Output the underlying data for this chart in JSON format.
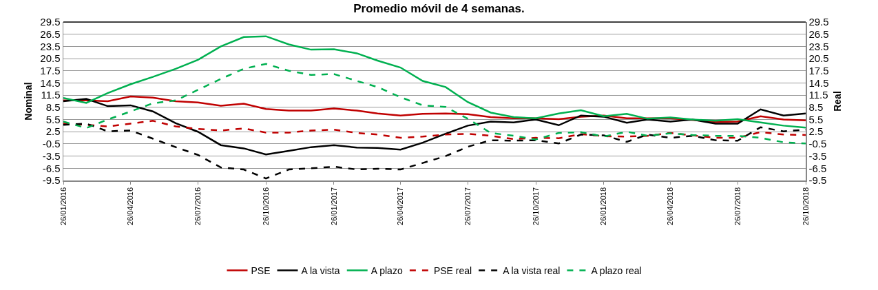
{
  "chart_data": {
    "type": "line",
    "title": "Promedio móvil de 4 semanas.",
    "ylabel": "Nominal",
    "y2label": "Real",
    "x": [
      "2016-01-26",
      "2016-02-26",
      "2016-03-26",
      "2016-04-26",
      "2016-05-26",
      "2016-06-26",
      "2016-07-26",
      "2016-08-26",
      "2016-09-26",
      "2016-10-26",
      "2016-11-26",
      "2016-12-26",
      "2017-01-26",
      "2017-02-26",
      "2017-03-26",
      "2017-04-26",
      "2017-05-26",
      "2017-06-26",
      "2017-07-26",
      "2017-08-26",
      "2017-09-26",
      "2017-10-26",
      "2017-11-26",
      "2017-12-26",
      "2018-01-26",
      "2018-02-26",
      "2018-03-26",
      "2018-04-26",
      "2018-05-26",
      "2018-06-26",
      "2018-07-26",
      "2018-08-26",
      "2018-09-26",
      "2018-10-26"
    ],
    "series": [
      {
        "name": "PSE",
        "color": "#c00000",
        "line_style": "solid",
        "values": [
          10.2,
          10.2,
          10.0,
          11.2,
          10.9,
          10.0,
          9.7,
          8.9,
          9.4,
          8.1,
          7.7,
          7.7,
          8.2,
          7.7,
          7.0,
          6.5,
          6.9,
          7.0,
          6.8,
          6.1,
          5.8,
          5.8,
          5.6,
          6.2,
          6.5,
          5.8,
          5.8,
          5.8,
          5.4,
          4.9,
          5.0,
          6.3,
          5.5,
          5.3
        ]
      },
      {
        "name": "A la vista",
        "color": "#000000",
        "line_style": "solid",
        "values": [
          10.0,
          10.6,
          8.8,
          9.0,
          7.5,
          4.6,
          2.5,
          -0.8,
          -1.6,
          -3.1,
          -2.2,
          -1.3,
          -0.8,
          -1.4,
          -1.5,
          -1.9,
          -0.2,
          2.0,
          4.0,
          5.0,
          4.8,
          5.5,
          4.1,
          6.5,
          6.2,
          4.7,
          5.5,
          5.0,
          5.5,
          4.5,
          4.5,
          8.0,
          6.5,
          7.0
        ]
      },
      {
        "name": "A plazo",
        "color": "#00b050",
        "line_style": "solid",
        "values": [
          10.8,
          9.6,
          12.0,
          14.2,
          16.0,
          18.0,
          20.2,
          23.5,
          25.8,
          26.0,
          24.0,
          22.7,
          22.8,
          21.8,
          20.0,
          18.3,
          15.0,
          13.5,
          9.8,
          7.2,
          6.1,
          5.8,
          7.0,
          7.8,
          6.3,
          6.9,
          5.7,
          6.0,
          5.5,
          5.2,
          5.6,
          4.8,
          4.0,
          3.5
        ]
      },
      {
        "name": "PSE real",
        "color": "#c00000",
        "line_style": "dashed",
        "axis": "y2",
        "values": [
          4.5,
          4.2,
          3.8,
          4.5,
          5.2,
          3.8,
          3.2,
          2.8,
          3.3,
          2.3,
          2.3,
          2.8,
          3.0,
          2.2,
          1.8,
          1.0,
          1.3,
          1.8,
          2.0,
          1.5,
          0.7,
          1.0,
          0.9,
          1.9,
          1.4,
          1.3,
          1.5,
          2.2,
          1.6,
          1.0,
          1.0,
          2.4,
          1.8,
          1.7
        ]
      },
      {
        "name": "A la vista real",
        "color": "#000000",
        "line_style": "dashed",
        "axis": "y2",
        "values": [
          4.2,
          4.5,
          2.6,
          2.8,
          0.8,
          -1.3,
          -3.2,
          -6.3,
          -6.8,
          -9.0,
          -6.8,
          -6.5,
          -6.1,
          -6.8,
          -6.6,
          -6.8,
          -5.2,
          -3.5,
          -1.2,
          0.4,
          0.3,
          0.4,
          -0.4,
          1.8,
          1.6,
          0.0,
          1.8,
          1.0,
          1.5,
          0.4,
          0.3,
          3.6,
          2.6,
          3.0
        ]
      },
      {
        "name": "A plazo real",
        "color": "#00b050",
        "line_style": "dashed",
        "axis": "y2",
        "values": [
          5.0,
          3.4,
          5.5,
          7.5,
          9.5,
          10.2,
          12.8,
          15.5,
          18.0,
          19.2,
          17.5,
          16.5,
          16.7,
          15.0,
          13.5,
          11.0,
          9.0,
          8.6,
          5.7,
          2.2,
          1.5,
          0.6,
          2.2,
          2.4,
          1.3,
          2.5,
          1.5,
          2.1,
          1.7,
          1.5,
          1.5,
          1.0,
          -0.1,
          -0.4
        ]
      }
    ],
    "xlim": [
      "2016-01-26",
      "2018-10-26"
    ],
    "xticks": [
      {
        "value": "2016-01-26",
        "label": "26/01/2016"
      },
      {
        "value": "2016-04-26",
        "label": "26/04/2016"
      },
      {
        "value": "2016-07-26",
        "label": "26/07/2016"
      },
      {
        "value": "2016-10-26",
        "label": "26/10/2016"
      },
      {
        "value": "2017-01-26",
        "label": "26/01/2017"
      },
      {
        "value": "2017-04-26",
        "label": "26/04/2017"
      },
      {
        "value": "2017-07-26",
        "label": "26/07/2017"
      },
      {
        "value": "2017-10-26",
        "label": "26/10/2017"
      },
      {
        "value": "2018-01-26",
        "label": "26/01/2018"
      },
      {
        "value": "2018-04-26",
        "label": "26/04/2018"
      },
      {
        "value": "2018-07-26",
        "label": "26/07/2018"
      },
      {
        "value": "2018-10-26",
        "label": "26/10/2018"
      }
    ],
    "ylim": [
      -9.5,
      29.5
    ],
    "yticks": [
      -9.5,
      -6.5,
      -3.5,
      -0.5,
      2.5,
      5.5,
      8.5,
      11.5,
      14.5,
      17.5,
      20.5,
      23.5,
      26.5,
      29.5
    ],
    "y2lim": [
      -9.5,
      29.5
    ],
    "y2ticks": [
      -9.5,
      -6.5,
      -3.5,
      -0.5,
      2.5,
      5.5,
      8.5,
      11.5,
      14.5,
      17.5,
      20.5,
      23.5,
      26.5,
      29.5
    ],
    "grid": "y",
    "legend": "bottom",
    "marker": "none"
  }
}
